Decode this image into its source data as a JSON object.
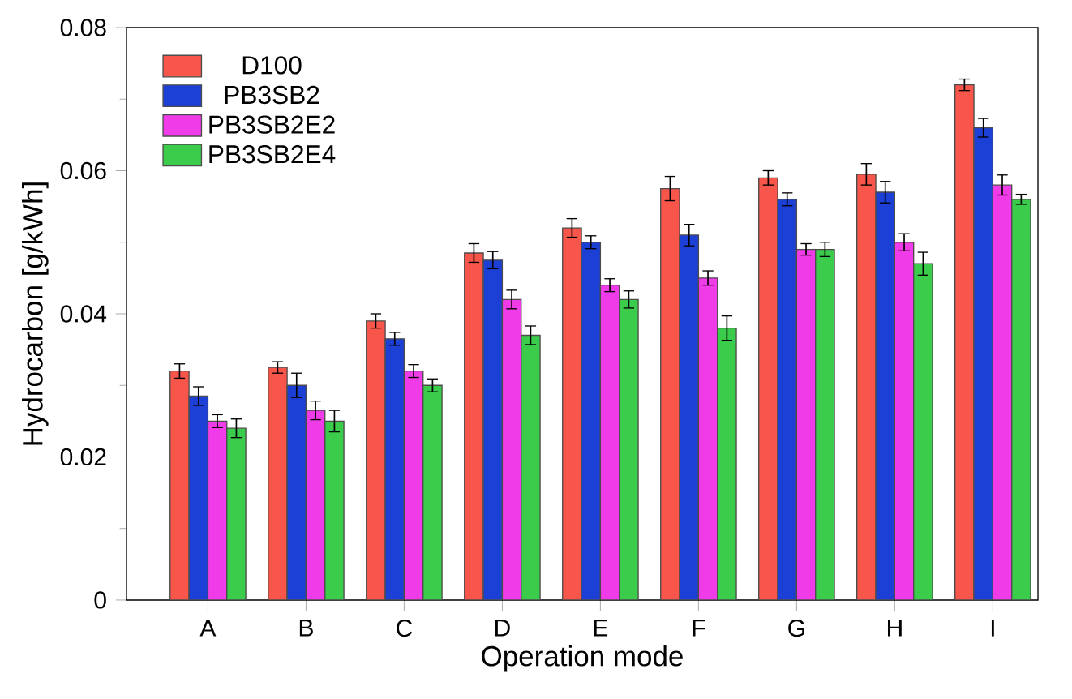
{
  "chart_data": {
    "type": "bar",
    "xlabel": "Operation mode",
    "ylabel": "Hydrocarbon [g/kWh]",
    "categories": [
      "A",
      "B",
      "C",
      "D",
      "E",
      "F",
      "G",
      "H",
      "I"
    ],
    "series": [
      {
        "name": "D100",
        "color": "#f8564b",
        "values": [
          0.032,
          0.0325,
          0.039,
          0.0485,
          0.052,
          0.0575,
          0.059,
          0.0595,
          0.072
        ],
        "errors": [
          0.001,
          0.0008,
          0.001,
          0.0013,
          0.0013,
          0.0017,
          0.001,
          0.0015,
          0.0008
        ]
      },
      {
        "name": "PB3SB2",
        "color": "#1c3fd6",
        "values": [
          0.0285,
          0.03,
          0.0365,
          0.0475,
          0.05,
          0.051,
          0.056,
          0.057,
          0.066
        ],
        "errors": [
          0.0013,
          0.0017,
          0.0009,
          0.0012,
          0.0009,
          0.0015,
          0.0009,
          0.0015,
          0.0013
        ]
      },
      {
        "name": "PB3SB2E2",
        "color": "#f03ce8",
        "values": [
          0.025,
          0.0265,
          0.032,
          0.042,
          0.044,
          0.045,
          0.049,
          0.05,
          0.058
        ],
        "errors": [
          0.0009,
          0.0013,
          0.0009,
          0.0013,
          0.0009,
          0.001,
          0.0008,
          0.0012,
          0.0014
        ]
      },
      {
        "name": "PB3SB2E4",
        "color": "#3ccc4c",
        "values": [
          0.024,
          0.025,
          0.03,
          0.037,
          0.042,
          0.038,
          0.049,
          0.047,
          0.056
        ],
        "errors": [
          0.0013,
          0.0015,
          0.0009,
          0.0013,
          0.0012,
          0.0017,
          0.001,
          0.0016,
          0.0007
        ]
      }
    ],
    "ylim": [
      0,
      0.08
    ],
    "yticks": [
      0,
      0.02,
      0.04,
      0.06,
      0.08
    ],
    "legend": "top left",
    "grid": false
  }
}
